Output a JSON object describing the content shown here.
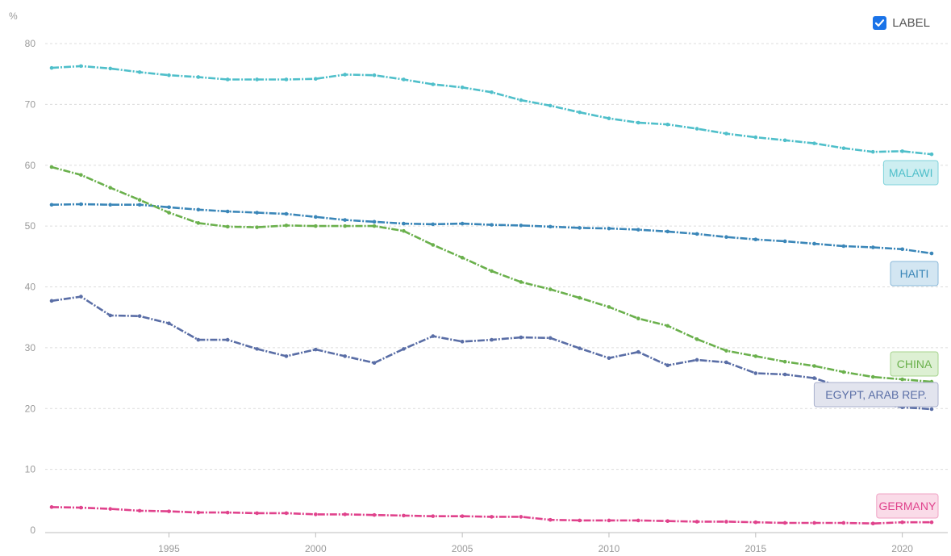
{
  "controls": {
    "label_toggle": {
      "text": "LABEL",
      "checked": true
    }
  },
  "chart_data": {
    "type": "line",
    "unit_label": "%",
    "ylim": [
      0,
      80
    ],
    "yticks": [
      0,
      10,
      20,
      30,
      40,
      50,
      60,
      70,
      80
    ],
    "xlim": [
      1991,
      2021
    ],
    "xticks": [
      1995,
      2000,
      2005,
      2010,
      2015,
      2020
    ],
    "grid": true,
    "x": [
      1991,
      1992,
      1993,
      1994,
      1995,
      1996,
      1997,
      1998,
      1999,
      2000,
      2001,
      2002,
      2003,
      2004,
      2005,
      2006,
      2007,
      2008,
      2009,
      2010,
      2011,
      2012,
      2013,
      2014,
      2015,
      2016,
      2017,
      2018,
      2019,
      2020,
      2021
    ],
    "series": [
      {
        "name": "MALAWI",
        "color": "#4fbfca",
        "label_fill": "#cdeef1",
        "label_border": "#7fd3db",
        "values": [
          76.0,
          76.3,
          75.9,
          75.3,
          74.8,
          74.5,
          74.1,
          74.1,
          74.1,
          74.2,
          74.9,
          74.8,
          74.1,
          73.3,
          72.8,
          72.0,
          70.7,
          69.8,
          68.7,
          67.7,
          67.0,
          66.7,
          66.0,
          65.2,
          64.6,
          64.1,
          63.6,
          62.8,
          62.2,
          62.3,
          61.8
        ]
      },
      {
        "name": "HAITI",
        "color": "#3a86b8",
        "label_fill": "#d3e6f2",
        "label_border": "#8ab8d9",
        "values": [
          53.5,
          53.6,
          53.5,
          53.5,
          53.1,
          52.7,
          52.4,
          52.2,
          52.0,
          51.5,
          51.0,
          50.7,
          50.4,
          50.3,
          50.4,
          50.2,
          50.1,
          49.9,
          49.7,
          49.6,
          49.4,
          49.1,
          48.7,
          48.2,
          47.8,
          47.5,
          47.1,
          46.7,
          46.5,
          46.2,
          45.5
        ]
      },
      {
        "name": "CHINA",
        "color": "#6ab04c",
        "label_fill": "#ddf0d3",
        "label_border": "#a6d48e",
        "values": [
          59.7,
          58.4,
          56.3,
          54.3,
          52.2,
          50.5,
          49.9,
          49.8,
          50.1,
          50.0,
          50.0,
          50.0,
          49.2,
          46.9,
          44.8,
          42.6,
          40.8,
          39.6,
          38.2,
          36.7,
          34.8,
          33.6,
          31.4,
          29.5,
          28.6,
          27.7,
          27.0,
          26.0,
          25.2,
          24.8,
          24.4
        ]
      },
      {
        "name": "EGYPT, ARAB REP.",
        "color": "#5a6ea6",
        "label_fill": "#e2e4ee",
        "label_border": "#a9b0cc",
        "values": [
          37.7,
          38.4,
          35.3,
          35.2,
          34.0,
          31.3,
          31.3,
          29.8,
          28.6,
          29.7,
          28.6,
          27.5,
          29.8,
          31.9,
          31.0,
          31.3,
          31.7,
          31.6,
          29.9,
          28.3,
          29.3,
          27.1,
          28.0,
          27.6,
          25.8,
          25.6,
          25.0,
          23.4,
          20.9,
          20.2,
          19.9
        ]
      },
      {
        "name": "GERMANY",
        "color": "#e0428c",
        "label_fill": "#fadbe8",
        "label_border": "#f0a3c5",
        "values": [
          3.8,
          3.7,
          3.5,
          3.2,
          3.1,
          2.9,
          2.9,
          2.8,
          2.8,
          2.6,
          2.6,
          2.5,
          2.4,
          2.3,
          2.3,
          2.2,
          2.2,
          1.7,
          1.6,
          1.6,
          1.6,
          1.5,
          1.4,
          1.4,
          1.3,
          1.2,
          1.2,
          1.2,
          1.1,
          1.3,
          1.3
        ]
      }
    ]
  }
}
